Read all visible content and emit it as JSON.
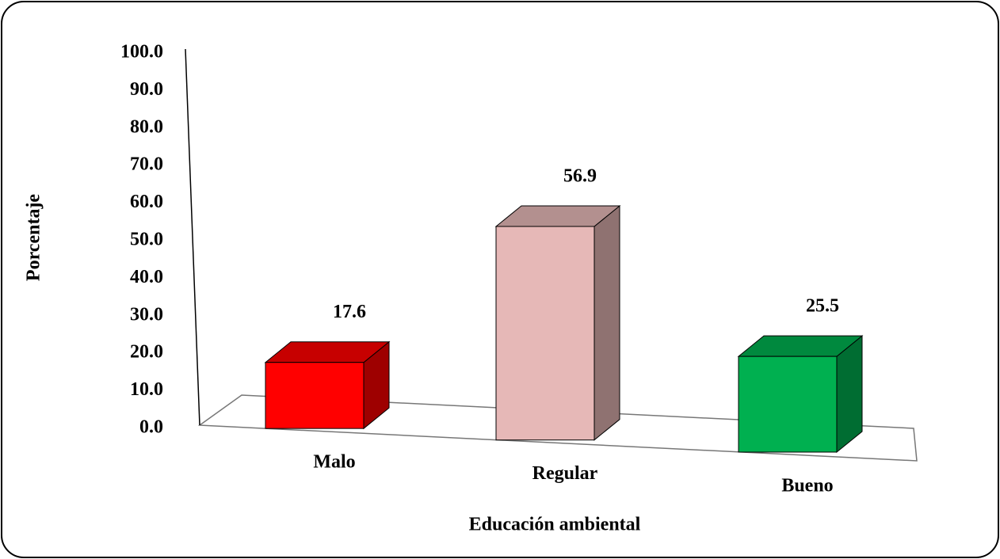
{
  "chart_data": {
    "type": "bar3d",
    "x_label": "Educación ambiental",
    "y_label": "Porcentaje",
    "categories": [
      "Malo",
      "Regular",
      "Bueno"
    ],
    "values": [
      17.6,
      56.9,
      25.5
    ],
    "colors": [
      "#ff0000",
      "#e6b8b7",
      "#00b050"
    ],
    "ylim": [
      0,
      100
    ],
    "yticks": [
      {
        "value": 0,
        "label": "0.0"
      },
      {
        "value": 10,
        "label": "10.0"
      },
      {
        "value": 20,
        "label": "20.0"
      },
      {
        "value": 30,
        "label": "30.0"
      },
      {
        "value": 40,
        "label": "40.0"
      },
      {
        "value": 50,
        "label": "50.0"
      },
      {
        "value": 60,
        "label": "60.0"
      },
      {
        "value": 70,
        "label": "70.0"
      },
      {
        "value": 80,
        "label": "80.0"
      },
      {
        "value": 90,
        "label": "90.0"
      },
      {
        "value": 100,
        "label": "100.0"
      }
    ]
  }
}
